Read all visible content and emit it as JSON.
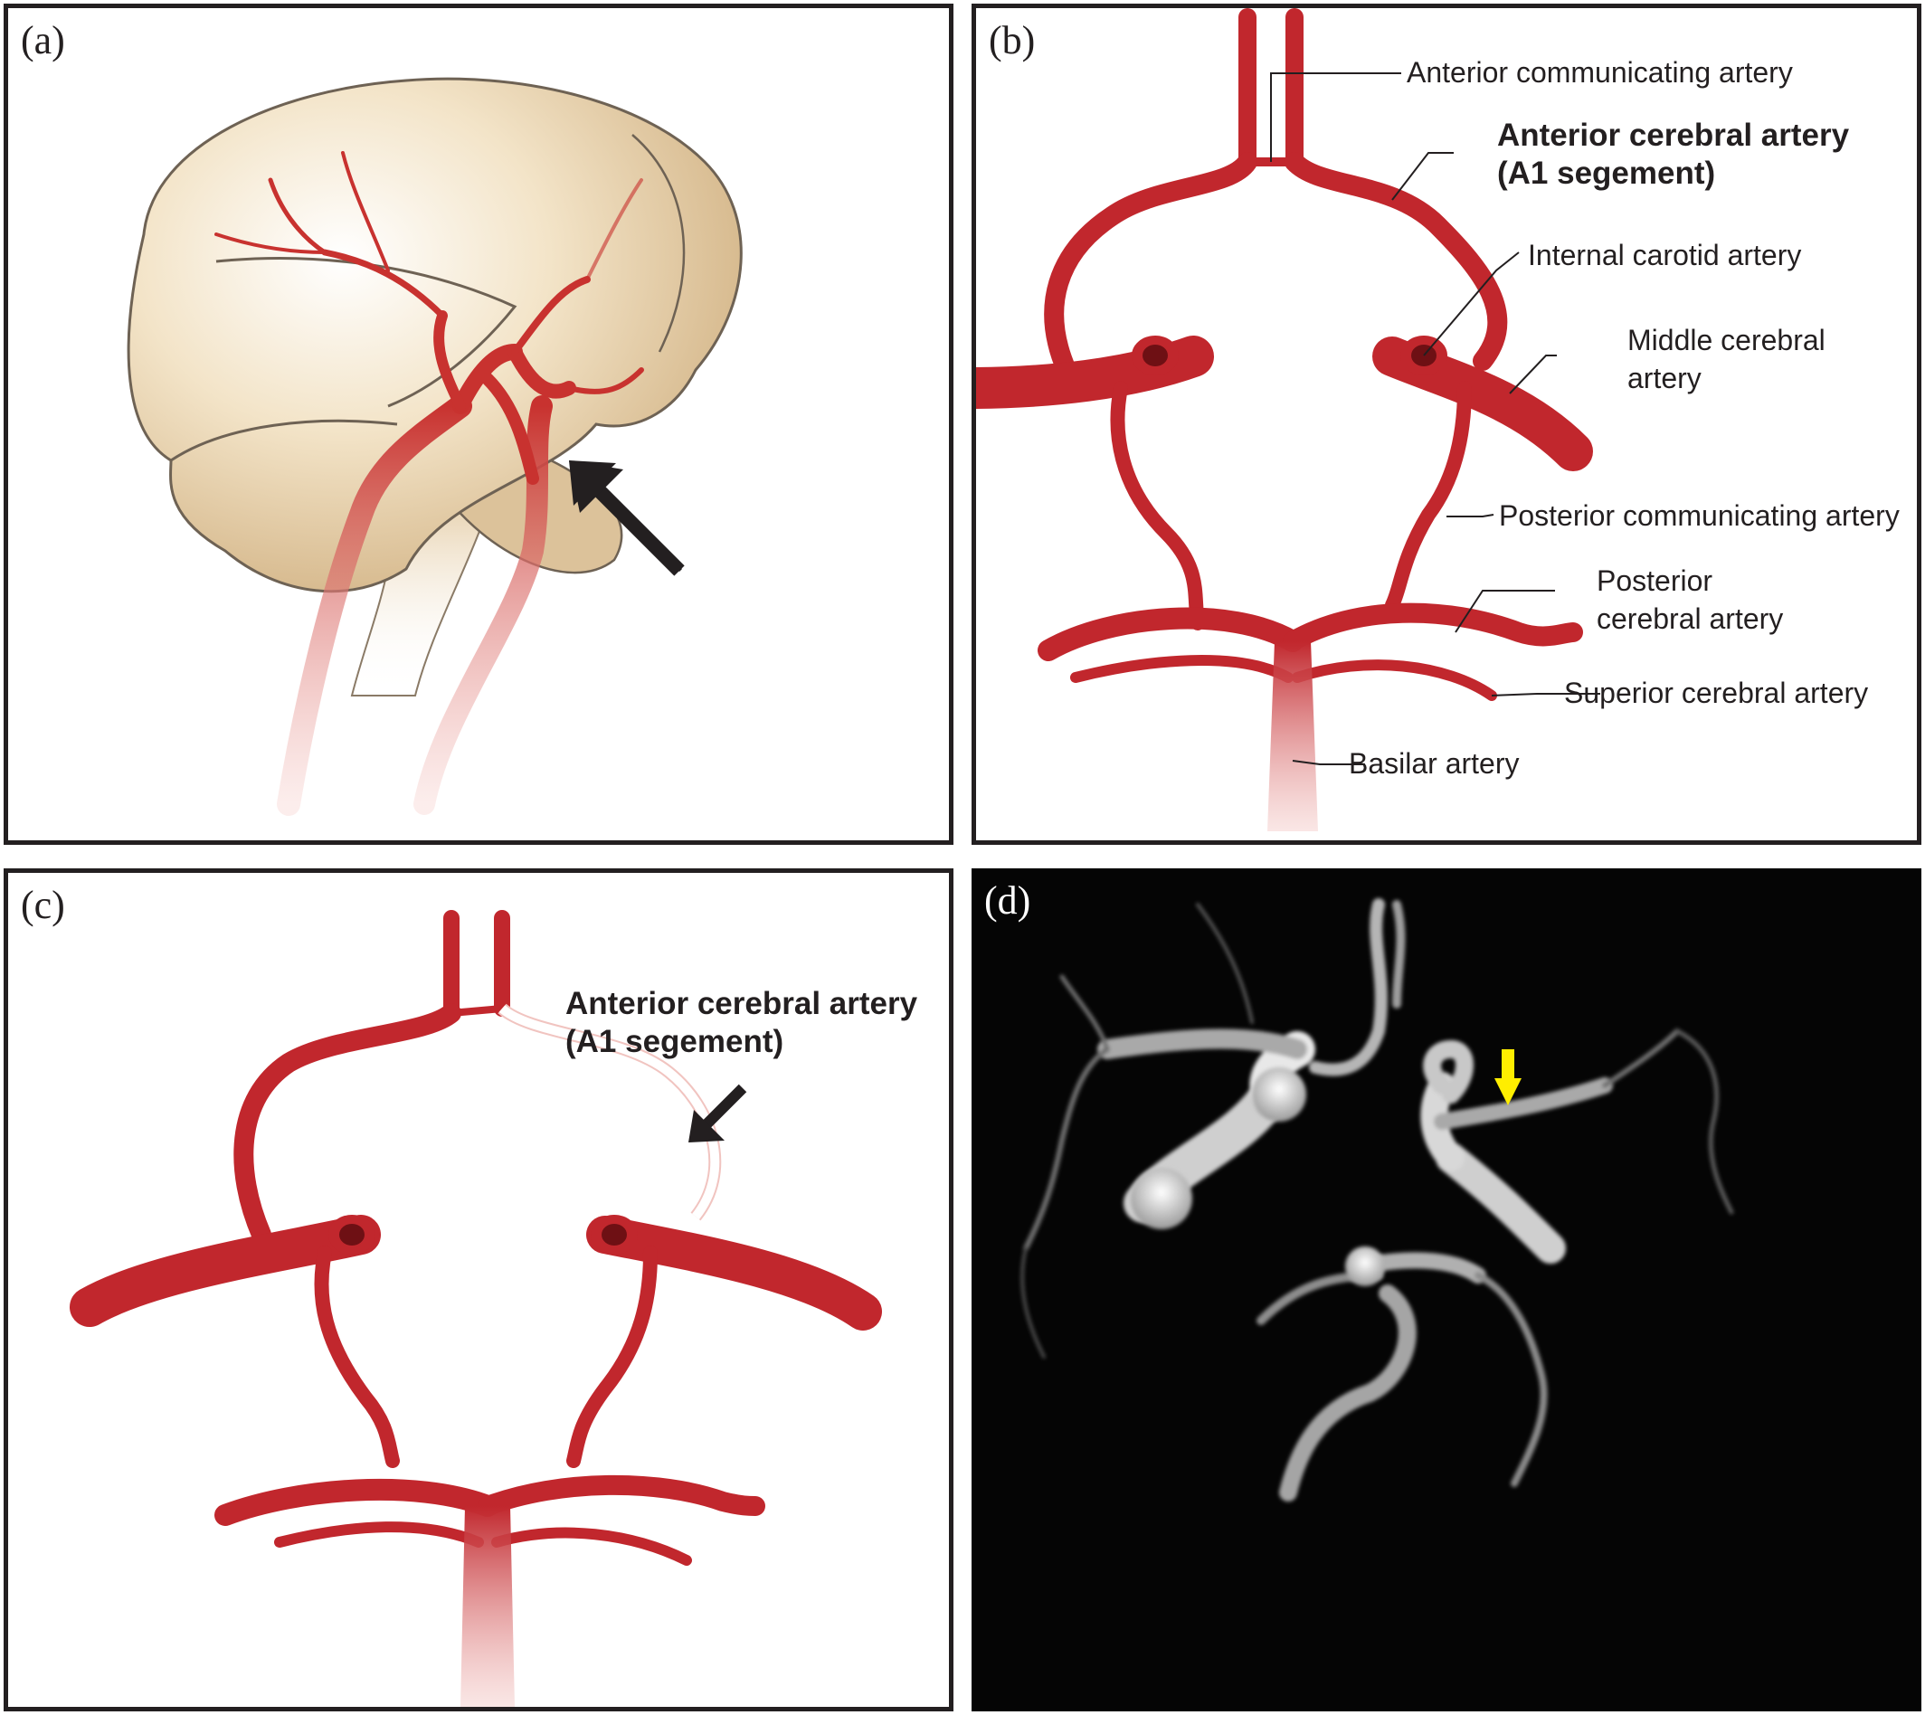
{
  "panels": {
    "a": {
      "label": "(a)"
    },
    "b": {
      "label": "(b)",
      "anterior_communicating": "Anterior communicating artery",
      "aca_line1": "Anterior cerebral artery",
      "aca_line2": "(A1 segement)",
      "internal_carotid": "Internal carotid artery",
      "mca_line1": "Middle cerebral",
      "mca_line2": "artery",
      "posterior_communicating": "Posterior communicating artery",
      "pca_line1": "Posterior",
      "pca_line2": "cerebral artery",
      "superior_cerebral": "Superior cerebral artery",
      "basilar": "Basilar artery"
    },
    "c": {
      "label": "(c)",
      "aca_line1": "Anterior cerebral artery",
      "aca_line2": "(A1 segement)"
    },
    "d": {
      "label": "(d)"
    }
  },
  "colors": {
    "artery": "#c1272d",
    "artery_highlight": "#e8675f",
    "brain": "#e9d4ae",
    "arrow_black": "#231f20",
    "arrow_yellow": "#ffee00"
  }
}
